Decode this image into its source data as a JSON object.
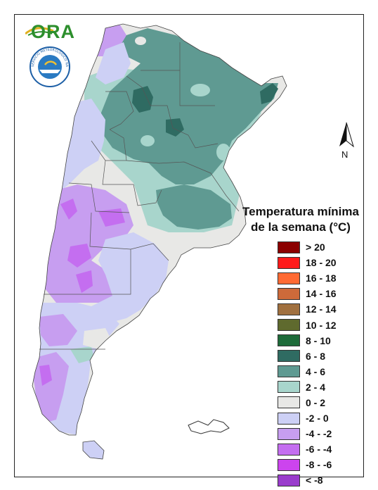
{
  "logos": {
    "brand_text": "ORA",
    "seal_text": "SERVICIO METEOROLOGICO NACIONAL · ARGENTINA"
  },
  "north_arrow": {
    "label": "N"
  },
  "legend": {
    "title_line1": "Temperatura mínima",
    "title_line2": "de la semana (°C)",
    "items": [
      {
        "label": "> 20",
        "color": "#8b0000"
      },
      {
        "label": "18 - 20",
        "color": "#ff1a1a"
      },
      {
        "label": "16 - 18",
        "color": "#ff6a33"
      },
      {
        "label": "14 - 16",
        "color": "#cd6a3a"
      },
      {
        "label": "12 - 14",
        "color": "#a0703f"
      },
      {
        "label": "10 - 12",
        "color": "#5f6a2e"
      },
      {
        "label": "8 - 10",
        "color": "#1e6b3a"
      },
      {
        "label": "6 - 8",
        "color": "#2f6b62"
      },
      {
        "label": "4 - 6",
        "color": "#5f9a92"
      },
      {
        "label": "2 - 4",
        "color": "#a8d5cc"
      },
      {
        "label": "0 - 2",
        "color": "#e8e8e6"
      },
      {
        "label": "-2 - 0",
        "color": "#cdd0f5"
      },
      {
        "label": "-4 - -2",
        "color": "#c79ef0"
      },
      {
        "label": "-6 - -4",
        "color": "#c46ef0"
      },
      {
        "label": "-8 - -6",
        "color": "#cc44ee"
      },
      {
        "label": "< -8",
        "color": "#9a3ccc"
      }
    ]
  }
}
